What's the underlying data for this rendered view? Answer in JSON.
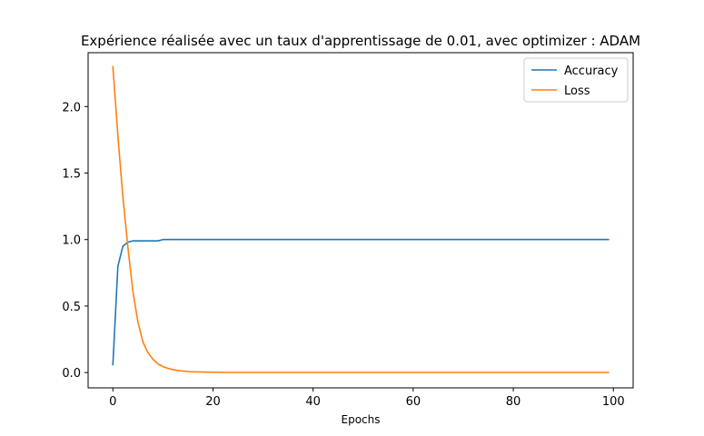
{
  "chart_data": {
    "type": "line",
    "title": "Expérience réalisée avec un taux d'apprentissage de 0.01, avec optimizer : ADAM",
    "xlabel": "Epochs",
    "ylabel": "",
    "xlim": [
      -4.95,
      103.95
    ],
    "ylim": [
      -0.115,
      2.405
    ],
    "xticks": [
      0,
      20,
      40,
      60,
      80,
      100
    ],
    "yticks": [
      0.0,
      0.5,
      1.0,
      1.5,
      2.0
    ],
    "xtick_labels": [
      "0",
      "20",
      "40",
      "60",
      "80",
      "100"
    ],
    "ytick_labels": [
      "0.0",
      "0.5",
      "1.0",
      "1.5",
      "2.0"
    ],
    "grid": false,
    "legend_position": "top-right",
    "series": [
      {
        "name": "Accuracy",
        "color": "#1f77b4",
        "keypoints": [
          [
            0,
            0.06
          ],
          [
            1,
            0.8
          ],
          [
            2,
            0.95
          ],
          [
            3,
            0.98
          ],
          [
            4,
            0.99
          ],
          [
            9,
            0.99
          ],
          [
            10,
            1.0
          ],
          [
            99,
            1.0
          ]
        ]
      },
      {
        "name": "Loss",
        "color": "#ff7f0e",
        "values": [
          2.3,
          1.78,
          1.32,
          0.94,
          0.61,
          0.38,
          0.23,
          0.15,
          0.1,
          0.065,
          0.045,
          0.032,
          0.022,
          0.015,
          0.011,
          0.008,
          0.006,
          0.005,
          0.004,
          0.003,
          0.002,
          0.002,
          0.001
        ],
        "tail_value": 0.001
      }
    ]
  }
}
